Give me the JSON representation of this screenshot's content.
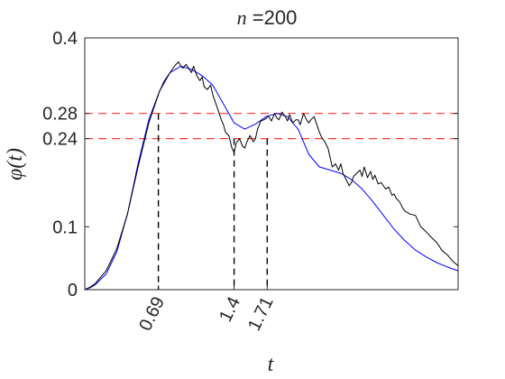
{
  "chart_data": {
    "type": "line",
    "title": "n =200",
    "title_var": "n",
    "title_rest": " =200",
    "xlabel": "t",
    "ylabel": "φ(t)",
    "xlim": [
      0,
      3.5
    ],
    "ylim": [
      0,
      0.4
    ],
    "yticks": [
      {
        "value": 0,
        "label": "0"
      },
      {
        "value": 0.1,
        "label": "0.1"
      },
      {
        "value": 0.24,
        "label": "0.24"
      },
      {
        "value": 0.28,
        "label": "0.28"
      },
      {
        "value": 0.4,
        "label": "0.4"
      }
    ],
    "xticks": [
      {
        "value": 0.69,
        "label": "0.69"
      },
      {
        "value": 1.4,
        "label": "1.4"
      },
      {
        "value": 1.71,
        "label": "1.71"
      }
    ],
    "hlines": [
      {
        "y": 0.28,
        "color": "#ff3333",
        "style": "dashed"
      },
      {
        "y": 0.24,
        "color": "#ff3333",
        "style": "dashed"
      }
    ],
    "vlines": [
      {
        "x": 0.69,
        "y": 0.28,
        "color": "#000000",
        "style": "dashed"
      },
      {
        "x": 1.4,
        "y": 0.24,
        "color": "#000000",
        "style": "dashed"
      },
      {
        "x": 1.71,
        "y": 0.24,
        "color": "#000000",
        "style": "dashed"
      }
    ],
    "grid": false,
    "series": [
      {
        "id": "smooth",
        "color": "#0000ff",
        "x": [
          0,
          0.05,
          0.1,
          0.2,
          0.3,
          0.4,
          0.5,
          0.6,
          0.7,
          0.8,
          0.9,
          1.0,
          1.1,
          1.2,
          1.3,
          1.4,
          1.5,
          1.6,
          1.7,
          1.8,
          1.9,
          2.0,
          2.1,
          2.2,
          2.3,
          2.4,
          2.5,
          2.6,
          2.7,
          2.8,
          2.9,
          3.0,
          3.1,
          3.2,
          3.3,
          3.4,
          3.5
        ],
        "y": [
          0,
          0.003,
          0.008,
          0.025,
          0.06,
          0.12,
          0.2,
          0.27,
          0.315,
          0.345,
          0.355,
          0.35,
          0.34,
          0.325,
          0.295,
          0.265,
          0.255,
          0.263,
          0.275,
          0.28,
          0.275,
          0.255,
          0.215,
          0.195,
          0.19,
          0.185,
          0.175,
          0.16,
          0.14,
          0.118,
          0.096,
          0.078,
          0.063,
          0.052,
          0.043,
          0.036,
          0.03
        ]
      },
      {
        "id": "empirical",
        "color": "#000000",
        "x": [
          0,
          0.05,
          0.1,
          0.2,
          0.3,
          0.4,
          0.5,
          0.6,
          0.7,
          0.72,
          0.74,
          0.76,
          0.8,
          0.82,
          0.85,
          0.88,
          0.9,
          0.92,
          0.95,
          0.98,
          1.0,
          1.02,
          1.05,
          1.08,
          1.1,
          1.12,
          1.15,
          1.18,
          1.2,
          1.22,
          1.25,
          1.28,
          1.3,
          1.32,
          1.35,
          1.38,
          1.4,
          1.42,
          1.45,
          1.48,
          1.5,
          1.52,
          1.55,
          1.58,
          1.6,
          1.62,
          1.65,
          1.68,
          1.7,
          1.72,
          1.75,
          1.78,
          1.8,
          1.82,
          1.85,
          1.88,
          1.9,
          1.92,
          1.95,
          1.98,
          2.0,
          2.02,
          2.05,
          2.08,
          2.1,
          2.12,
          2.15,
          2.18,
          2.2,
          2.22,
          2.25,
          2.28,
          2.3,
          2.32,
          2.35,
          2.38,
          2.4,
          2.42,
          2.45,
          2.48,
          2.5,
          2.52,
          2.55,
          2.58,
          2.6,
          2.62,
          2.65,
          2.68,
          2.7,
          2.72,
          2.75,
          2.78,
          2.8,
          2.82,
          2.85,
          2.88,
          2.9,
          2.92,
          2.95,
          2.98,
          3.0,
          3.05,
          3.1,
          3.15,
          3.2,
          3.25,
          3.3,
          3.35,
          3.4,
          3.45,
          3.5
        ],
        "y": [
          0,
          0.004,
          0.01,
          0.03,
          0.065,
          0.12,
          0.195,
          0.265,
          0.315,
          0.322,
          0.33,
          0.335,
          0.345,
          0.35,
          0.357,
          0.362,
          0.355,
          0.352,
          0.358,
          0.35,
          0.345,
          0.355,
          0.34,
          0.332,
          0.338,
          0.322,
          0.318,
          0.325,
          0.31,
          0.3,
          0.285,
          0.27,
          0.262,
          0.25,
          0.245,
          0.225,
          0.218,
          0.233,
          0.24,
          0.228,
          0.225,
          0.235,
          0.245,
          0.235,
          0.24,
          0.255,
          0.268,
          0.27,
          0.272,
          0.276,
          0.268,
          0.28,
          0.273,
          0.27,
          0.282,
          0.275,
          0.268,
          0.278,
          0.265,
          0.27,
          0.27,
          0.262,
          0.28,
          0.27,
          0.265,
          0.27,
          0.275,
          0.26,
          0.25,
          0.242,
          0.235,
          0.225,
          0.21,
          0.195,
          0.2,
          0.19,
          0.2,
          0.185,
          0.175,
          0.165,
          0.17,
          0.18,
          0.185,
          0.19,
          0.18,
          0.195,
          0.178,
          0.188,
          0.175,
          0.182,
          0.168,
          0.17,
          0.165,
          0.16,
          0.163,
          0.15,
          0.152,
          0.145,
          0.14,
          0.13,
          0.125,
          0.12,
          0.118,
          0.1,
          0.092,
          0.083,
          0.075,
          0.062,
          0.055,
          0.045,
          0.038
        ]
      }
    ]
  }
}
